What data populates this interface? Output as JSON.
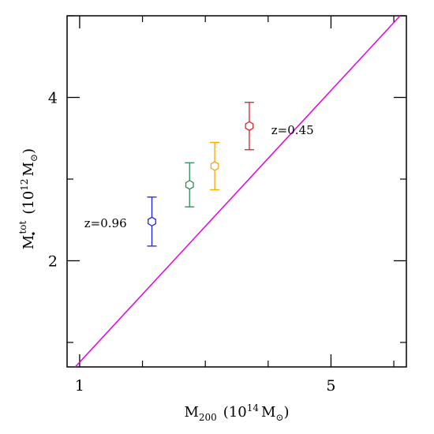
{
  "chart_data": {
    "type": "scatter",
    "x_axis": {
      "label": {
        "base": "M",
        "sub": "200",
        "paren_open": "(10",
        "exp": "14",
        "unit": "M",
        "unit_sub": "⊙",
        "paren_close": ")"
      },
      "range": [
        0.8,
        6.2
      ],
      "ticks": [
        {
          "value": 1,
          "label": "1"
        },
        {
          "value": 5,
          "label": "5"
        }
      ],
      "minor_ticks": [
        2,
        3,
        4,
        6
      ]
    },
    "y_axis": {
      "label": {
        "base": "M",
        "sub": "•",
        "sup": "tot",
        "paren_open": "(10",
        "exp": "12",
        "unit": "M",
        "unit_sub": "⊙",
        "paren_close": ")"
      },
      "range": [
        0.7,
        5.0
      ],
      "ticks": [
        {
          "value": 2,
          "label": "2"
        },
        {
          "value": 4,
          "label": "4"
        }
      ],
      "minor_ticks": [
        1,
        3,
        5
      ]
    },
    "fit_line": {
      "color": "#e400e4",
      "x": [
        0.93,
        6.1
      ],
      "y": [
        0.7,
        5.0
      ]
    },
    "points": [
      {
        "x": 2.15,
        "y": 2.48,
        "y_err": 0.3,
        "color": "#2222dd"
      },
      {
        "x": 2.75,
        "y": 2.93,
        "y_err": 0.27,
        "color": "#2e8b57"
      },
      {
        "x": 3.15,
        "y": 3.16,
        "y_err": 0.29,
        "color": "#ffa500"
      },
      {
        "x": 3.7,
        "y": 3.65,
        "y_err": 0.29,
        "color": "#e02020"
      }
    ],
    "annotations": [
      {
        "text": "z=0.96",
        "x": 1.75,
        "y": 2.46,
        "anchor": "end"
      },
      {
        "text": "z=0.45",
        "x": 4.05,
        "y": 3.6,
        "anchor": "start"
      }
    ],
    "grid": false
  }
}
